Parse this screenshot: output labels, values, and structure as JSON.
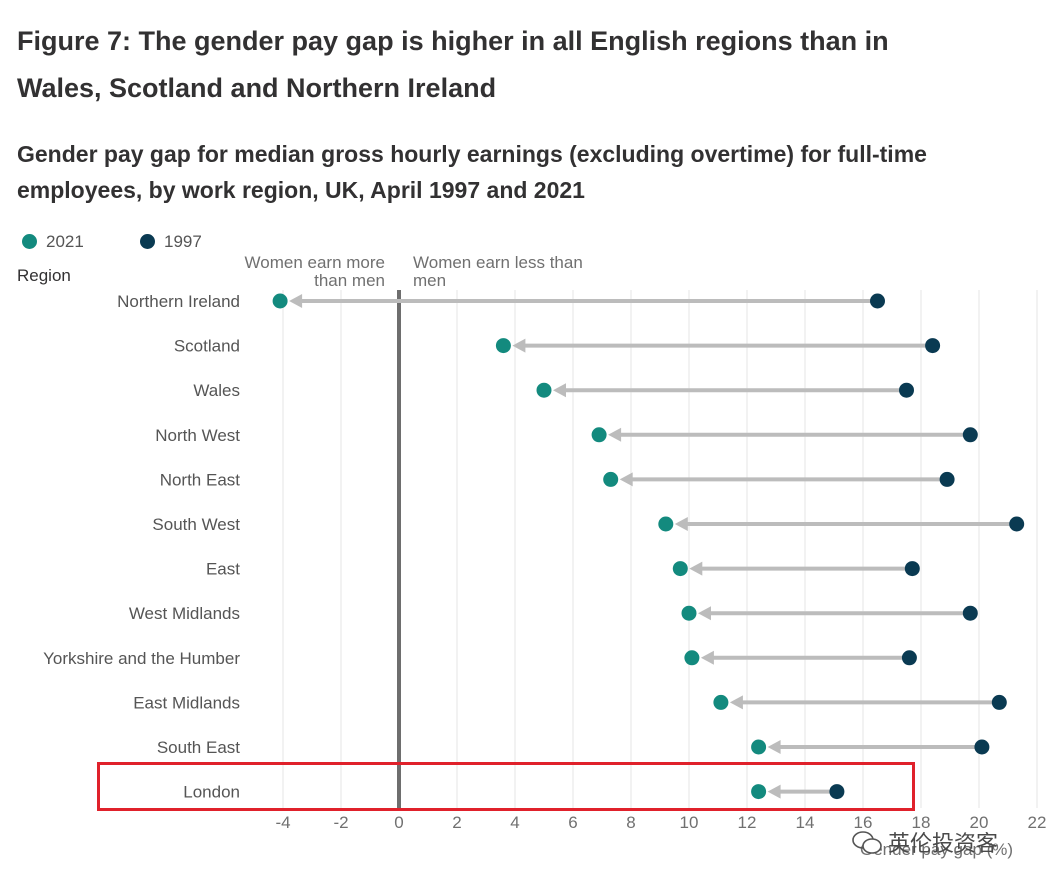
{
  "figure_title": "Figure 7: The gender pay gap is higher in all English regions than in Wales, Scotland and Northern Ireland",
  "chart_data": {
    "type": "dumbbell",
    "title": "Gender pay gap for median gross hourly earnings (excluding overtime) for full-time employees, by work region, UK, April 1997 and 2021",
    "ylabel": "Region",
    "xlabel": "Gender pay gap (%)",
    "xlim": [
      -4,
      22
    ],
    "xticks": [
      -4,
      -2,
      0,
      2,
      4,
      6,
      8,
      10,
      12,
      14,
      16,
      18,
      20,
      22
    ],
    "grid": true,
    "legend_position": "top-left",
    "annotations": {
      "left": "Women earn more than men",
      "right": "Women earn less than men"
    },
    "categories": [
      "Northern Ireland",
      "Scotland",
      "Wales",
      "North West",
      "North East",
      "South West",
      "East",
      "West Midlands",
      "Yorkshire and the Humber",
      "East Midlands",
      "South East",
      "London"
    ],
    "series": [
      {
        "name": "2021",
        "color": "#138a7e",
        "values": [
          -4.1,
          3.6,
          5.0,
          6.9,
          7.3,
          9.2,
          9.7,
          10.0,
          10.1,
          11.1,
          12.4,
          12.4
        ]
      },
      {
        "name": "1997",
        "color": "#0a3a52",
        "values": [
          16.5,
          18.4,
          17.5,
          19.7,
          18.9,
          21.3,
          17.7,
          19.7,
          17.6,
          20.7,
          20.1,
          15.1
        ]
      }
    ],
    "highlighted_category": "London",
    "colors": {
      "arrow": "#bcbcbc",
      "zero_line": "#6e6e6e",
      "grid": "#e6e6e6",
      "highlight_box": "#e0212b"
    }
  },
  "watermark": "英伦投资客"
}
